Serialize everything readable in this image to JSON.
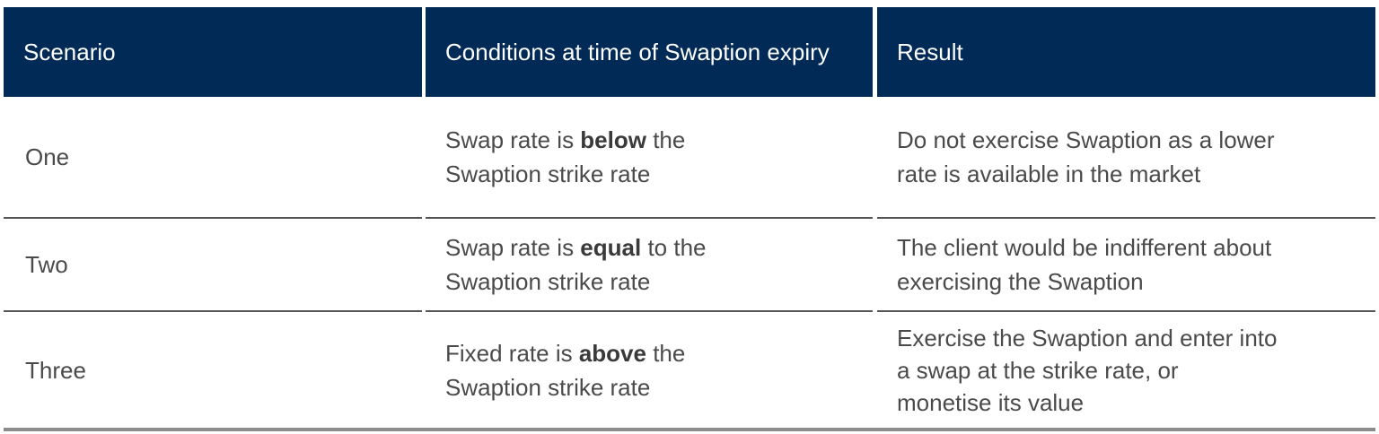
{
  "table": {
    "header": [
      "Scenario",
      "Conditions at time of Swaption expiry",
      "Result"
    ],
    "rows": [
      {
        "scenario": "One",
        "condition": {
          "before": "Swap rate is ",
          "emphasis": "below",
          "after": " the",
          "line2": "Swaption strike rate"
        },
        "result": [
          "Do not exercise Swaption as a lower",
          "rate is available in the market"
        ]
      },
      {
        "scenario": "Two",
        "condition": {
          "before": "Swap rate is ",
          "emphasis": "equal",
          "after": " to the",
          "line2": "Swaption strike rate"
        },
        "result": [
          "The client would be indifferent about",
          "exercising the Swaption"
        ]
      },
      {
        "scenario": "Three",
        "condition": {
          "before": "Fixed rate is ",
          "emphasis": "above",
          "after": " the",
          "line2": "Swaption strike rate"
        },
        "result": [
          "Exercise the Swaption and enter into",
          "a swap at the strike rate, or",
          "monetise its value"
        ]
      }
    ]
  }
}
